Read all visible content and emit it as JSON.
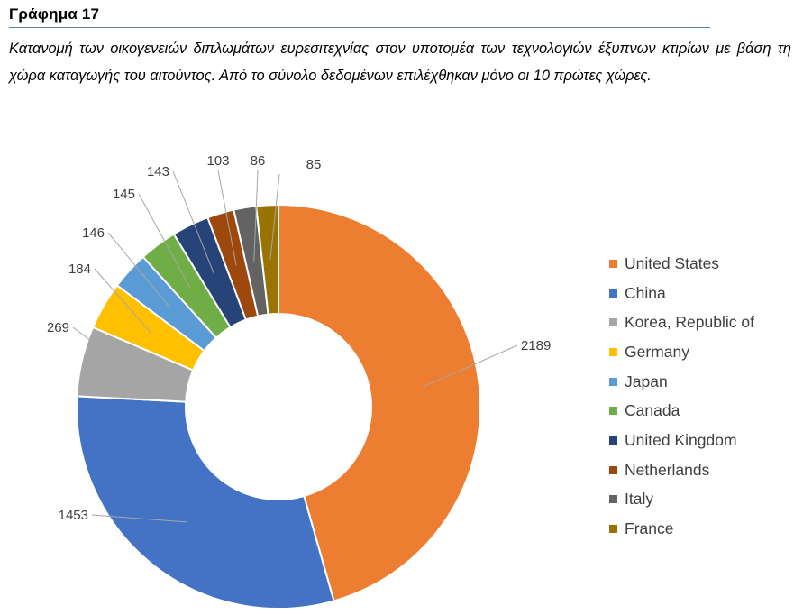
{
  "heading": "Γράφημα 17",
  "caption": "Κατανομή των οικογενειών διπλωμάτων ευρεσιτεχνίας στον υποτομέα των τεχνολογιών έξυπνων κτιρίων με βάση τη χώρα καταγωγής του αιτούντος. Από το σύνολο δεδομένων επιλέχθηκαν μόνο οι 10 πρώτες χώρες.",
  "chart_data": {
    "type": "pie",
    "variant": "doughnut",
    "title": "",
    "legend_position": "right",
    "categories": [
      "United States",
      "China",
      "Korea, Republic of",
      "Germany",
      "Japan",
      "Canada",
      "United Kingdom",
      "Netherlands",
      "Italy",
      "France"
    ],
    "values": [
      2189,
      1453,
      269,
      184,
      146,
      145,
      143,
      103,
      86,
      85
    ],
    "colors": [
      "#ED7D31",
      "#4472C4",
      "#A5A5A5",
      "#FFC000",
      "#5B9BD5",
      "#70AD47",
      "#264478",
      "#9E480E",
      "#636363",
      "#997300"
    ]
  }
}
